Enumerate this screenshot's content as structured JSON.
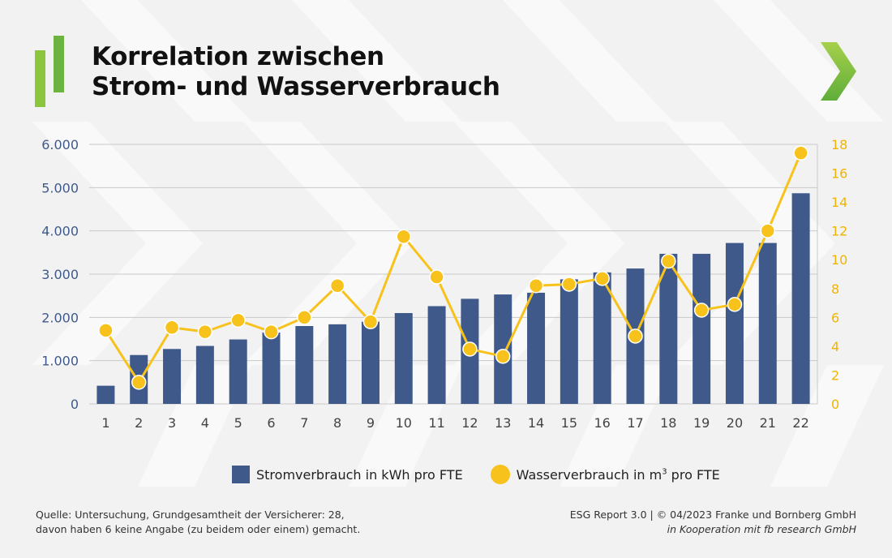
{
  "header": {
    "title_line1": "Korrelation zwischen",
    "title_line2": "Strom- und Wasserverbrauch"
  },
  "colors": {
    "bar": "#3f5a8a",
    "line": "#f8c21c",
    "left_axis_text": "#3f5a8a",
    "right_axis_text": "#f0b400",
    "accent_green": "#8cc63f"
  },
  "chart_data": {
    "type": "bar",
    "categories": [
      "1",
      "2",
      "3",
      "4",
      "5",
      "6",
      "7",
      "8",
      "9",
      "10",
      "11",
      "12",
      "13",
      "14",
      "15",
      "16",
      "17",
      "18",
      "19",
      "20",
      "21",
      "22"
    ],
    "series": [
      {
        "name": "Stromverbrauch in kWh pro FTE",
        "type": "bar",
        "axis": "left",
        "values": [
          420,
          1130,
          1270,
          1340,
          1490,
          1650,
          1800,
          1840,
          1900,
          2100,
          2260,
          2430,
          2530,
          2570,
          2880,
          3040,
          3130,
          3470,
          3470,
          3720,
          3720,
          4870
        ]
      },
      {
        "name": "Wasserverbrauch in m³ pro FTE",
        "type": "line",
        "axis": "right",
        "values": [
          5.1,
          1.5,
          5.3,
          5.0,
          5.8,
          5.0,
          6.0,
          8.2,
          5.7,
          11.6,
          8.8,
          3.8,
          3.3,
          8.2,
          8.3,
          8.7,
          4.7,
          9.9,
          6.5,
          6.9,
          12.0,
          17.4
        ]
      }
    ],
    "y_left": {
      "ylim": [
        0,
        6000
      ],
      "ticks": [
        "0",
        "1.000",
        "2.000",
        "3.000",
        "4.000",
        "5.000",
        "6.000"
      ]
    },
    "y_right": {
      "ylim": [
        0,
        18
      ],
      "ticks": [
        "0",
        "2",
        "4",
        "6",
        "8",
        "10",
        "12",
        "14",
        "16",
        "18"
      ]
    },
    "grid": true,
    "legend_placement": "bottom-center"
  },
  "legend": {
    "bar_label_before": "Stromverbrauch in kWh pro FTE",
    "line_label_before": "Wasserverbrauch in m",
    "line_label_sup": "3",
    "line_label_after": " pro FTE"
  },
  "footer": {
    "source_line1": "Quelle: Untersuchung, Grundgesamtheit der Versicherer: 28,",
    "source_line2": "davon haben 6 keine Angabe (zu beidem oder einem) gemacht.",
    "credit_line1": "ESG Report 3.0 | © 04/2023 Franke und Bornberg GmbH",
    "credit_line2": "in Kooperation mit fb research GmbH"
  },
  "icons": {
    "logo": "logo-bars-icon",
    "arrow": "chevron-right-icon"
  }
}
